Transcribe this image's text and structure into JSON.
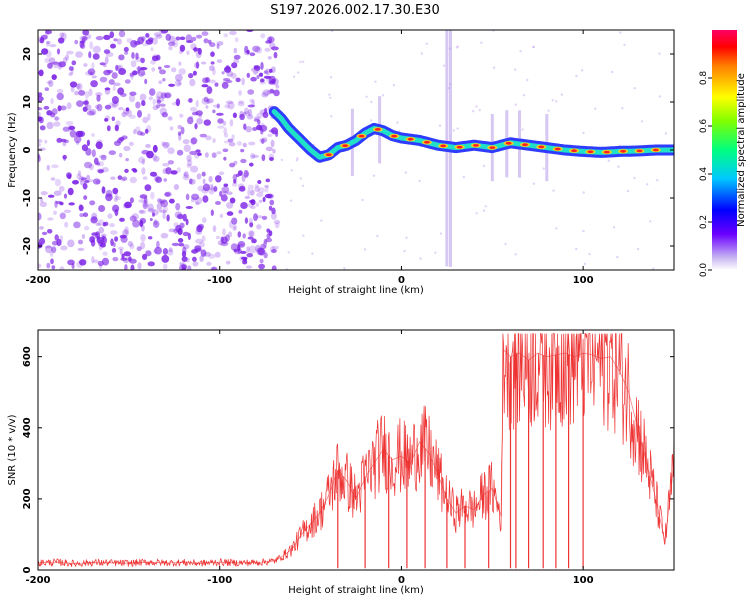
{
  "title": "S197.2026.002.17.30.E30",
  "chart_data": [
    {
      "type": "heatmap",
      "name": "spectrogram",
      "xlabel": "Height of straight line (km)",
      "ylabel": "Frequency (Hz)",
      "xlim": [
        -200,
        150
      ],
      "ylim": [
        -25,
        25
      ],
      "x_ticks": [
        "-200",
        "-100",
        "0",
        "100"
      ],
      "y_ticks": [
        "-20",
        "-10",
        "0",
        "10",
        "20"
      ],
      "ridge_x": [
        -70,
        -66,
        -62,
        -58,
        -54,
        -50,
        -45,
        -40,
        -35,
        -30,
        -25,
        -20,
        -15,
        -10,
        -5,
        0,
        10,
        20,
        30,
        40,
        50,
        60,
        70,
        80,
        90,
        100,
        110,
        120,
        130,
        140,
        150
      ],
      "ridge_y": [
        8,
        6.5,
        4.5,
        3,
        1.5,
        0,
        -1.5,
        -1,
        0.5,
        1,
        2,
        3.5,
        4.5,
        4,
        3,
        2.5,
        2,
        1,
        0.5,
        1,
        0.5,
        1.5,
        1,
        0.5,
        0,
        -0.3,
        -0.5,
        -0.3,
        -0.2,
        0,
        0
      ],
      "noise_region_x": [
        -200,
        -68
      ],
      "colorbar": {
        "label": "Normalized spectral amplitude",
        "ticks": [
          "0.0",
          "0.2",
          "0.4",
          "0.6",
          "0.8"
        ],
        "range": [
          0,
          1
        ]
      },
      "colors": {
        "noise": "#7a1fe6",
        "ridge_low": "#2f3bff",
        "ridge_mid": "#20e0c8",
        "ridge_high": "#ff2020"
      }
    },
    {
      "type": "line",
      "name": "snr",
      "xlabel": "Height of straight line (km)",
      "ylabel": "SNR (10 * v/v)",
      "xlim": [
        -200,
        150
      ],
      "ylim": [
        0,
        675
      ],
      "x_ticks": [
        "-200",
        "-100",
        "0",
        "100"
      ],
      "y_ticks": [
        "0",
        "200",
        "400",
        "600"
      ],
      "series": [
        {
          "name": "SNR",
          "color": "#ee3333",
          "x": [
            -200,
            -190,
            -180,
            -170,
            -160,
            -150,
            -140,
            -130,
            -120,
            -110,
            -100,
            -90,
            -80,
            -70,
            -65,
            -60,
            -55,
            -50,
            -45,
            -40,
            -35,
            -30,
            -25,
            -20,
            -15,
            -10,
            -5,
            0,
            5,
            10,
            15,
            20,
            25,
            30,
            35,
            40,
            45,
            50,
            55,
            56,
            60,
            65,
            70,
            75,
            80,
            85,
            90,
            95,
            100,
            105,
            110,
            115,
            120,
            125,
            130,
            135,
            140,
            145,
            150
          ],
          "y": [
            20,
            22,
            18,
            21,
            20,
            19,
            22,
            20,
            21,
            19,
            22,
            20,
            21,
            25,
            40,
            60,
            100,
            130,
            160,
            210,
            280,
            250,
            200,
            260,
            300,
            340,
            310,
            320,
            300,
            360,
            330,
            270,
            200,
            160,
            180,
            170,
            210,
            230,
            150,
            620,
            600,
            610,
            590,
            610,
            600,
            605,
            610,
            600,
            610,
            605,
            595,
            600,
            560,
            500,
            400,
            300,
            200,
            80,
            300
          ]
        }
      ]
    }
  ]
}
